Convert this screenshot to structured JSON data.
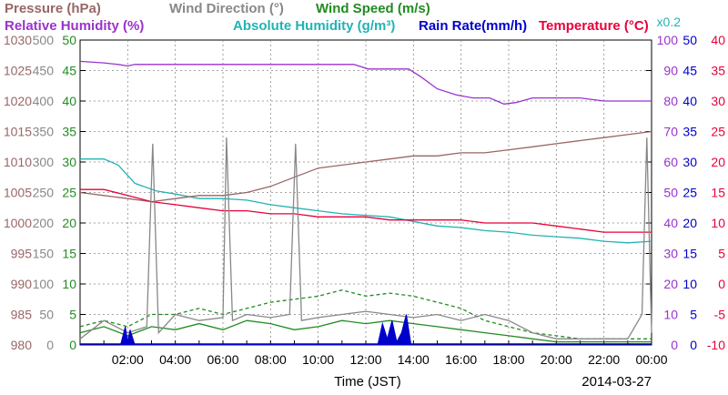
{
  "chart_data": {
    "type": "line",
    "date": "2014-03-27",
    "xlabel": "Time (JST)",
    "x_ticks": [
      "02:00",
      "04:00",
      "06:00",
      "08:00",
      "10:00",
      "12:00",
      "14:00",
      "16:00",
      "18:00",
      "20:00",
      "22:00",
      "00:00"
    ],
    "xlim_hours": [
      0,
      24
    ],
    "grid": true,
    "legend": [
      {
        "label": "Pressure (hPa)",
        "color": "#996666"
      },
      {
        "label": "Wind Direction (°)",
        "color": "#888888"
      },
      {
        "label": "Wind Speed (m/s)",
        "color": "#228B22"
      },
      {
        "label": "Relative Humidity (%)",
        "color": "#9933cc"
      },
      {
        "label": "Absolute Humidity (g/m³)",
        "color": "#22b3b3"
      },
      {
        "label": "Rain Rate(mm/h)",
        "color": "#0000cc"
      },
      {
        "label": "Temperature (°C)",
        "color": "#e8003a"
      }
    ],
    "scale_note": "x0.2",
    "axes": {
      "pressure": {
        "ticks": [
          "980",
          "985",
          "990",
          "995",
          "1000",
          "1005",
          "1010",
          "1015",
          "1020",
          "1025",
          "1030"
        ],
        "color": "#996666"
      },
      "wind_direction": {
        "ticks": [
          "0",
          "50",
          "100",
          "150",
          "200",
          "250",
          "300",
          "350",
          "400",
          "450",
          "500"
        ],
        "color": "#888888"
      },
      "wind_speed": {
        "ticks": [
          "0",
          "5",
          "10",
          "15",
          "20",
          "25",
          "30",
          "35",
          "40",
          "45",
          "50"
        ],
        "color": "#228B22"
      },
      "humidity": {
        "ticks": [
          "0",
          "10",
          "20",
          "30",
          "40",
          "50",
          "60",
          "70",
          "80",
          "90",
          "100"
        ],
        "color": "#9933cc"
      },
      "rain_rate": {
        "ticks": [
          "0",
          "5",
          "10",
          "15",
          "20",
          "25",
          "30",
          "35",
          "40",
          "45",
          "50"
        ],
        "color": "#0000cc"
      },
      "temperature": {
        "ticks": [
          "-10",
          "-5",
          "0",
          "5",
          "10",
          "15",
          "20",
          "25",
          "30",
          "35",
          "40"
        ],
        "color": "#e8003a"
      }
    },
    "series": [
      {
        "name": "Relative Humidity (%)",
        "unit_axis": "humidity",
        "color": "#9933cc",
        "points": [
          [
            0,
            93
          ],
          [
            1,
            92.5
          ],
          [
            1.6,
            92
          ],
          [
            2,
            91.5
          ],
          [
            2.3,
            92
          ],
          [
            4,
            92
          ],
          [
            6,
            92
          ],
          [
            8,
            92
          ],
          [
            10,
            92
          ],
          [
            11.5,
            92
          ],
          [
            12.1,
            90.5
          ],
          [
            13,
            90.5
          ],
          [
            13.8,
            90.5
          ],
          [
            14.3,
            88
          ],
          [
            15,
            84
          ],
          [
            15.8,
            82
          ],
          [
            16.5,
            81
          ],
          [
            17.2,
            81
          ],
          [
            17.8,
            79
          ],
          [
            18.3,
            79.5
          ],
          [
            19,
            81
          ],
          [
            20,
            81
          ],
          [
            21,
            81
          ],
          [
            22,
            80
          ],
          [
            23,
            80
          ],
          [
            24,
            80
          ]
        ]
      },
      {
        "name": "Absolute Humidity (g/m³)",
        "unit_axis": "humidity",
        "color": "#22b3b3",
        "points": [
          [
            0,
            61
          ],
          [
            1,
            61
          ],
          [
            1.6,
            59
          ],
          [
            2.3,
            53
          ],
          [
            3.2,
            50.5
          ],
          [
            4,
            49.5
          ],
          [
            5,
            48
          ],
          [
            6,
            48
          ],
          [
            7,
            47.5
          ],
          [
            8,
            46
          ],
          [
            9,
            45
          ],
          [
            10,
            44
          ],
          [
            11,
            43
          ],
          [
            12,
            42.5
          ],
          [
            13,
            42
          ],
          [
            14,
            40.5
          ],
          [
            15,
            39
          ],
          [
            16,
            38.5
          ],
          [
            17,
            37.5
          ],
          [
            18,
            37
          ],
          [
            19,
            36
          ],
          [
            20,
            35.5
          ],
          [
            21,
            35
          ],
          [
            22,
            34
          ],
          [
            23,
            33.5
          ],
          [
            24,
            34
          ]
        ]
      },
      {
        "name": "Pressure (hPa)",
        "unit_axis": "pressure",
        "color": "#996666",
        "points": [
          [
            0,
            1005
          ],
          [
            1,
            1004.5
          ],
          [
            2,
            1004
          ],
          [
            3,
            1003.5
          ],
          [
            4,
            1004
          ],
          [
            5,
            1004.5
          ],
          [
            6,
            1004.5
          ],
          [
            7,
            1005
          ],
          [
            8,
            1006
          ],
          [
            9,
            1007.5
          ],
          [
            10,
            1009
          ],
          [
            11,
            1009.5
          ],
          [
            12,
            1010
          ],
          [
            13,
            1010.5
          ],
          [
            14,
            1011
          ],
          [
            15,
            1011
          ],
          [
            16,
            1011.5
          ],
          [
            17,
            1011.5
          ],
          [
            18,
            1012
          ],
          [
            19,
            1012.5
          ],
          [
            20,
            1013
          ],
          [
            21,
            1013.5
          ],
          [
            22,
            1014
          ],
          [
            23,
            1014.5
          ],
          [
            24,
            1015
          ]
        ]
      },
      {
        "name": "Temperature (°C)",
        "unit_axis": "temperature",
        "color": "#e8003a",
        "points": [
          [
            0,
            15.5
          ],
          [
            1,
            15.5
          ],
          [
            2,
            14.5
          ],
          [
            3,
            13.5
          ],
          [
            4,
            13
          ],
          [
            5,
            12.5
          ],
          [
            6,
            12
          ],
          [
            7,
            12
          ],
          [
            8,
            11.5
          ],
          [
            9,
            11.5
          ],
          [
            10,
            11
          ],
          [
            11,
            11
          ],
          [
            12,
            11
          ],
          [
            13,
            10.5
          ],
          [
            14,
            10.5
          ],
          [
            15,
            10.5
          ],
          [
            16,
            10.5
          ],
          [
            17,
            10
          ],
          [
            18,
            10
          ],
          [
            19,
            10
          ],
          [
            20,
            9.5
          ],
          [
            21,
            9
          ],
          [
            22,
            8.5
          ],
          [
            23,
            8.5
          ],
          [
            24,
            8.5
          ]
        ]
      },
      {
        "name": "Wind Speed (m/s)",
        "unit_axis": "wind_speed",
        "color": "#228B22",
        "points": [
          [
            0,
            2
          ],
          [
            1,
            3
          ],
          [
            2,
            1.5
          ],
          [
            3,
            3
          ],
          [
            4,
            2.5
          ],
          [
            5,
            3.5
          ],
          [
            6,
            2.5
          ],
          [
            7,
            4
          ],
          [
            8,
            3.5
          ],
          [
            9,
            2.5
          ],
          [
            10,
            3
          ],
          [
            11,
            4
          ],
          [
            12,
            3.5
          ],
          [
            13,
            4
          ],
          [
            14,
            3.5
          ],
          [
            15,
            3
          ],
          [
            16,
            2.5
          ],
          [
            17,
            2
          ],
          [
            18,
            1.5
          ],
          [
            19,
            1
          ],
          [
            20,
            0.5
          ],
          [
            21,
            0.5
          ],
          [
            22,
            0.5
          ],
          [
            23,
            0.5
          ],
          [
            24,
            0.5
          ]
        ]
      },
      {
        "name": "Wind Speed (m/s)",
        "unit_axis": "wind_speed",
        "color": "#228B22",
        "style": "dashed",
        "points": [
          [
            0,
            3
          ],
          [
            1,
            4
          ],
          [
            2,
            3
          ],
          [
            3,
            5
          ],
          [
            4,
            5
          ],
          [
            5,
            6
          ],
          [
            6,
            5
          ],
          [
            7,
            6
          ],
          [
            8,
            7
          ],
          [
            9,
            7.5
          ],
          [
            10,
            8
          ],
          [
            11,
            9
          ],
          [
            12,
            8
          ],
          [
            13,
            8.5
          ],
          [
            14,
            8
          ],
          [
            15,
            7
          ],
          [
            16,
            6
          ],
          [
            17,
            4
          ],
          [
            18,
            3
          ],
          [
            19,
            2
          ],
          [
            20,
            1.5
          ],
          [
            21,
            1
          ],
          [
            22,
            1
          ],
          [
            23,
            1
          ],
          [
            24,
            1
          ]
        ]
      },
      {
        "name": "Wind Direction (°)",
        "unit_axis": "wind_direction",
        "color": "#888888",
        "points": [
          [
            0,
            10
          ],
          [
            1,
            40
          ],
          [
            2,
            20
          ],
          [
            2.8,
            30
          ],
          [
            3.05,
            330
          ],
          [
            3.3,
            20
          ],
          [
            4,
            50
          ],
          [
            5,
            40
          ],
          [
            6,
            45
          ],
          [
            6.15,
            340
          ],
          [
            6.4,
            40
          ],
          [
            7,
            50
          ],
          [
            8,
            45
          ],
          [
            8.8,
            50
          ],
          [
            9.05,
            330
          ],
          [
            9.3,
            40
          ],
          [
            10,
            45
          ],
          [
            11,
            50
          ],
          [
            12,
            55
          ],
          [
            13,
            50
          ],
          [
            14,
            45
          ],
          [
            15,
            50
          ],
          [
            16,
            40
          ],
          [
            17,
            50
          ],
          [
            18,
            40
          ],
          [
            19,
            20
          ],
          [
            20,
            10
          ],
          [
            21,
            10
          ],
          [
            22,
            10
          ],
          [
            23,
            10
          ],
          [
            23.6,
            50
          ],
          [
            23.8,
            340
          ],
          [
            24,
            20
          ]
        ]
      },
      {
        "name": "Rain Rate(mm/h)",
        "unit_axis": "rain_rate",
        "color": "#0000cc",
        "style": "fill",
        "points": [
          [
            1.7,
            0
          ],
          [
            1.9,
            3
          ],
          [
            2.0,
            0.5
          ],
          [
            2.1,
            2.5
          ],
          [
            2.3,
            0
          ],
          [
            12.5,
            0
          ],
          [
            12.7,
            3.5
          ],
          [
            12.9,
            1
          ],
          [
            13.1,
            4
          ],
          [
            13.3,
            0.5
          ],
          [
            13.5,
            2
          ],
          [
            13.7,
            5
          ],
          [
            13.9,
            0
          ]
        ]
      }
    ]
  }
}
